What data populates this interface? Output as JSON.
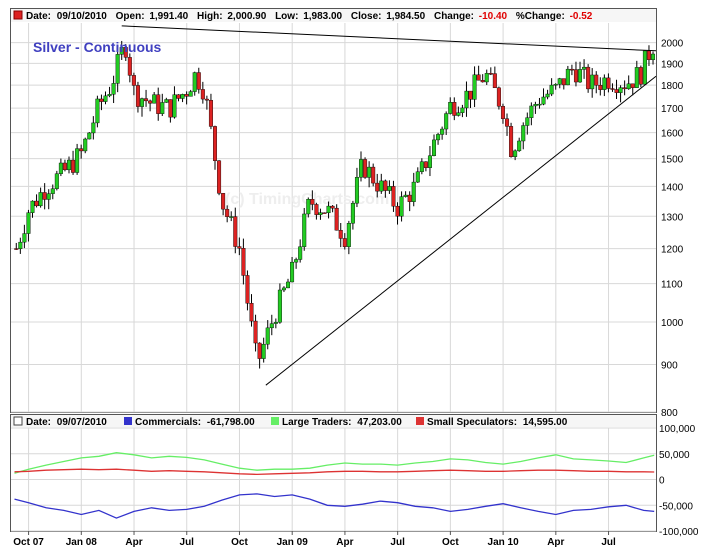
{
  "colors": {
    "up": "#22cc22",
    "down": "#dd2222",
    "wick": "#000000",
    "commercials": "#3333cc",
    "large_traders": "#66ee66",
    "small_speculators": "#dd3333",
    "grid": "#d8d8d8",
    "frame": "#555555"
  },
  "price_header": {
    "date_label": "Date:",
    "date": "09/10/2010",
    "open_label": "Open:",
    "open": "1,991.40",
    "high_label": "High:",
    "high": "2,000.90",
    "low_label": "Low:",
    "low": "1,983.00",
    "close_label": "Close:",
    "close": "1,984.50",
    "change_label": "Change:",
    "change": "-10.40",
    "pct_label": "%Change:",
    "pct": "-0.52"
  },
  "cot_header": {
    "date_label": "Date:",
    "date": "09/07/2010",
    "commercials_label": "Commercials:",
    "commercials": "-61,798.00",
    "large_label": "Large Traders:",
    "large": "47,203.00",
    "small_label": "Small Speculators:",
    "small": "14,595.00"
  },
  "chart_data": [
    {
      "type": "candlestick",
      "title": "Silver - Continuous",
      "watermark": "(c) TimingCharts.com",
      "ylim": [
        800,
        2100
      ],
      "y_scale": "log",
      "y_ticks": [
        800,
        900,
        1000,
        1100,
        1200,
        1300,
        1400,
        1500,
        1600,
        1700,
        1800,
        1900,
        2000
      ],
      "x_tick_labels": [
        "Oct 07",
        "Jan 08",
        "Apr",
        "Jul",
        "Oct",
        "Jan 09",
        "Apr",
        "Jul",
        "Oct",
        "Jan 10",
        "Apr",
        "Jul"
      ],
      "x_tick_months": [
        9,
        12,
        15,
        18,
        21,
        24,
        27,
        30,
        33,
        36,
        39,
        42
      ],
      "x_range_months": [
        8.0,
        44.7
      ],
      "monthly_closes": [
        {
          "m": 8.3,
          "v": 1200
        },
        {
          "m": 9,
          "v": 1320
        },
        {
          "m": 10,
          "v": 1400
        },
        {
          "m": 11,
          "v": 1450
        },
        {
          "m": 12,
          "v": 1520
        },
        {
          "m": 13,
          "v": 1710
        },
        {
          "m": 13.7,
          "v": 1800
        },
        {
          "m": 14.5,
          "v": 2000
        },
        {
          "m": 15,
          "v": 1770
        },
        {
          "m": 16,
          "v": 1720
        },
        {
          "m": 17,
          "v": 1700
        },
        {
          "m": 18,
          "v": 1780
        },
        {
          "m": 18.5,
          "v": 1850
        },
        {
          "m": 19,
          "v": 1780
        },
        {
          "m": 20,
          "v": 1350
        },
        {
          "m": 21,
          "v": 1200
        },
        {
          "m": 22,
          "v": 900
        },
        {
          "m": 23,
          "v": 1020
        },
        {
          "m": 24,
          "v": 1130
        },
        {
          "m": 25,
          "v": 1350
        },
        {
          "m": 26,
          "v": 1320
        },
        {
          "m": 27,
          "v": 1240
        },
        {
          "m": 28,
          "v": 1480
        },
        {
          "m": 29,
          "v": 1400
        },
        {
          "m": 30,
          "v": 1330
        },
        {
          "m": 31,
          "v": 1400
        },
        {
          "m": 32,
          "v": 1550
        },
        {
          "m": 33,
          "v": 1710
        },
        {
          "m": 34,
          "v": 1760
        },
        {
          "m": 35,
          "v": 1850
        },
        {
          "m": 36,
          "v": 1700
        },
        {
          "m": 36.5,
          "v": 1530
        },
        {
          "m": 37,
          "v": 1620
        },
        {
          "m": 38,
          "v": 1740
        },
        {
          "m": 39,
          "v": 1780
        },
        {
          "m": 40,
          "v": 1880
        },
        {
          "m": 41,
          "v": 1800
        },
        {
          "m": 42,
          "v": 1830
        },
        {
          "m": 43,
          "v": 1810
        },
        {
          "m": 43.8,
          "v": 1850
        },
        {
          "m": 44.5,
          "v": 1990
        }
      ],
      "trendlines": [
        {
          "from": [
            14.3,
            2085
          ],
          "to": [
            44.7,
            1960
          ]
        },
        {
          "from": [
            22.5,
            855
          ],
          "to": [
            44.7,
            1840
          ]
        }
      ]
    },
    {
      "type": "line",
      "ylim": [
        -100000,
        100000
      ],
      "y_ticks": [
        100000,
        50000,
        0,
        -50000,
        -100000
      ],
      "y_tick_labels": [
        "100,000",
        "50,000",
        "0",
        "-50,000",
        "-100,000"
      ],
      "series": [
        {
          "name": "Commercials",
          "color_key": "commercials",
          "points": [
            [
              8.2,
              -38000
            ],
            [
              9,
              -45000
            ],
            [
              10,
              -55000
            ],
            [
              11,
              -60000
            ],
            [
              12,
              -68000
            ],
            [
              13,
              -60000
            ],
            [
              14,
              -75000
            ],
            [
              15,
              -62000
            ],
            [
              16,
              -55000
            ],
            [
              17,
              -60000
            ],
            [
              18,
              -58000
            ],
            [
              19,
              -52000
            ],
            [
              20,
              -40000
            ],
            [
              21,
              -30000
            ],
            [
              22,
              -28000
            ],
            [
              23,
              -33000
            ],
            [
              24,
              -30000
            ],
            [
              25,
              -38000
            ],
            [
              26,
              -50000
            ],
            [
              27,
              -52000
            ],
            [
              28,
              -48000
            ],
            [
              29,
              -42000
            ],
            [
              30,
              -45000
            ],
            [
              31,
              -52000
            ],
            [
              32,
              -55000
            ],
            [
              33,
              -62000
            ],
            [
              34,
              -58000
            ],
            [
              35,
              -52000
            ],
            [
              36,
              -47000
            ],
            [
              37,
              -55000
            ],
            [
              38,
              -62000
            ],
            [
              39,
              -68000
            ],
            [
              40,
              -60000
            ],
            [
              41,
              -58000
            ],
            [
              42,
              -53000
            ],
            [
              43,
              -50000
            ],
            [
              44,
              -60000
            ],
            [
              44.6,
              -62000
            ]
          ]
        },
        {
          "name": "Large Traders",
          "color_key": "large_traders",
          "points": [
            [
              8.2,
              12000
            ],
            [
              9,
              20000
            ],
            [
              10,
              28000
            ],
            [
              11,
              35000
            ],
            [
              12,
              42000
            ],
            [
              13,
              45000
            ],
            [
              14,
              52000
            ],
            [
              15,
              48000
            ],
            [
              16,
              42000
            ],
            [
              17,
              45000
            ],
            [
              18,
              43000
            ],
            [
              19,
              38000
            ],
            [
              20,
              30000
            ],
            [
              21,
              22000
            ],
            [
              22,
              18000
            ],
            [
              23,
              20000
            ],
            [
              24,
              20000
            ],
            [
              25,
              22000
            ],
            [
              26,
              28000
            ],
            [
              27,
              32000
            ],
            [
              28,
              30000
            ],
            [
              29,
              30000
            ],
            [
              30,
              28000
            ],
            [
              31,
              32000
            ],
            [
              32,
              35000
            ],
            [
              33,
              40000
            ],
            [
              34,
              38000
            ],
            [
              35,
              33000
            ],
            [
              36,
              30000
            ],
            [
              37,
              35000
            ],
            [
              38,
              42000
            ],
            [
              39,
              48000
            ],
            [
              40,
              40000
            ],
            [
              41,
              38000
            ],
            [
              42,
              36000
            ],
            [
              43,
              33000
            ],
            [
              44,
              42000
            ],
            [
              44.6,
              47000
            ]
          ]
        },
        {
          "name": "Small Speculators",
          "color_key": "small_speculators",
          "points": [
            [
              8.2,
              15000
            ],
            [
              9,
              16000
            ],
            [
              10,
              18000
            ],
            [
              11,
              19000
            ],
            [
              12,
              20000
            ],
            [
              13,
              19000
            ],
            [
              14,
              20000
            ],
            [
              15,
              18000
            ],
            [
              16,
              16000
            ],
            [
              17,
              17000
            ],
            [
              18,
              16000
            ],
            [
              19,
              15000
            ],
            [
              20,
              13000
            ],
            [
              21,
              11000
            ],
            [
              22,
              10000
            ],
            [
              23,
              11000
            ],
            [
              24,
              12000
            ],
            [
              25,
              13000
            ],
            [
              26,
              15000
            ],
            [
              27,
              16000
            ],
            [
              28,
              16000
            ],
            [
              29,
              15000
            ],
            [
              30,
              15000
            ],
            [
              31,
              16000
            ],
            [
              32,
              17000
            ],
            [
              33,
              18000
            ],
            [
              34,
              17000
            ],
            [
              35,
              16000
            ],
            [
              36,
              16000
            ],
            [
              37,
              17000
            ],
            [
              38,
              18000
            ],
            [
              39,
              18000
            ],
            [
              40,
              17000
            ],
            [
              41,
              16000
            ],
            [
              42,
              16000
            ],
            [
              43,
              15000
            ],
            [
              44,
              15000
            ],
            [
              44.6,
              14600
            ]
          ]
        }
      ]
    }
  ]
}
